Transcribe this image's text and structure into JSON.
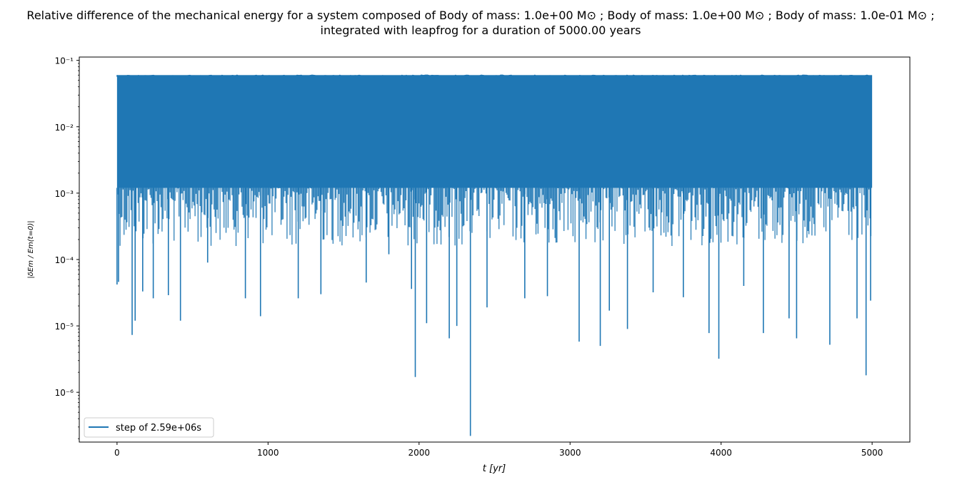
{
  "chart_data": {
    "type": "line",
    "title_line1": "Relative difference of the mechanical energy for a system composed of Body of mass: 1.0e+00 M⊙ ; Body of mass: 1.0e+00 M⊙ ; Body of mass: 1.0e-01 M⊙ ;",
    "title_line2": "integrated with leapfrog for a duration of 5000.00 years",
    "xlabel": "t [yr]",
    "ylabel": "|δEm / Em(t=0)|",
    "xscale": "linear",
    "yscale": "log",
    "xlim": [
      -250,
      5250
    ],
    "ylim_log10": [
      -6.75,
      -0.95
    ],
    "x_ticks": [
      0,
      1000,
      2000,
      3000,
      4000,
      5000
    ],
    "x_tick_labels": [
      "0",
      "1000",
      "2000",
      "3000",
      "4000",
      "5000"
    ],
    "y_tick_exponents": [
      -6,
      -5,
      -4,
      -3,
      -2,
      -1
    ],
    "y_tick_labels": [
      "10⁻⁶",
      "10⁻⁵",
      "10⁻⁴",
      "10⁻³",
      "10⁻²",
      "10⁻¹"
    ],
    "legend": {
      "location": "lower-left",
      "label": "step of 2.59e+06s"
    },
    "series": [
      {
        "name": "step of 2.59e+06s",
        "color": "#1f77b4",
        "x_range": [
          0,
          5000
        ],
        "upper_envelope": 0.06,
        "dense_floor": 0.0012,
        "minima": [
          {
            "x": 0,
            "y": 4.2e-05
          },
          {
            "x": 10,
            "y": 4.6e-05
          },
          {
            "x": 100,
            "y": 7.3e-06
          },
          {
            "x": 120,
            "y": 1.2e-05
          },
          {
            "x": 170,
            "y": 3.3e-05
          },
          {
            "x": 240,
            "y": 2.6e-05
          },
          {
            "x": 340,
            "y": 2.9e-05
          },
          {
            "x": 420,
            "y": 1.2e-05
          },
          {
            "x": 600,
            "y": 9e-05
          },
          {
            "x": 850,
            "y": 2.6e-05
          },
          {
            "x": 950,
            "y": 1.4e-05
          },
          {
            "x": 1200,
            "y": 2.6e-05
          },
          {
            "x": 1350,
            "y": 3e-05
          },
          {
            "x": 1650,
            "y": 4.5e-05
          },
          {
            "x": 1800,
            "y": 0.00012
          },
          {
            "x": 1950,
            "y": 3.6e-05
          },
          {
            "x": 1975,
            "y": 1.7e-06
          },
          {
            "x": 2050,
            "y": 1.1e-05
          },
          {
            "x": 2200,
            "y": 6.5e-06
          },
          {
            "x": 2250,
            "y": 1e-05
          },
          {
            "x": 2340,
            "y": 2.2e-07
          },
          {
            "x": 2450,
            "y": 1.9e-05
          },
          {
            "x": 2700,
            "y": 2.6e-05
          },
          {
            "x": 2850,
            "y": 2.8e-05
          },
          {
            "x": 3060,
            "y": 5.8e-06
          },
          {
            "x": 3200,
            "y": 5e-06
          },
          {
            "x": 3260,
            "y": 1.7e-05
          },
          {
            "x": 3380,
            "y": 9e-06
          },
          {
            "x": 3550,
            "y": 3.2e-05
          },
          {
            "x": 3750,
            "y": 2.7e-05
          },
          {
            "x": 3920,
            "y": 7.8e-06
          },
          {
            "x": 3985,
            "y": 3.2e-06
          },
          {
            "x": 4150,
            "y": 4e-05
          },
          {
            "x": 4280,
            "y": 7.8e-06
          },
          {
            "x": 4450,
            "y": 1.3e-05
          },
          {
            "x": 4500,
            "y": 6.5e-06
          },
          {
            "x": 4720,
            "y": 5.2e-06
          },
          {
            "x": 4900,
            "y": 1.3e-05
          },
          {
            "x": 4960,
            "y": 1.8e-06
          },
          {
            "x": 4990,
            "y": 2.4e-05
          }
        ]
      }
    ]
  }
}
